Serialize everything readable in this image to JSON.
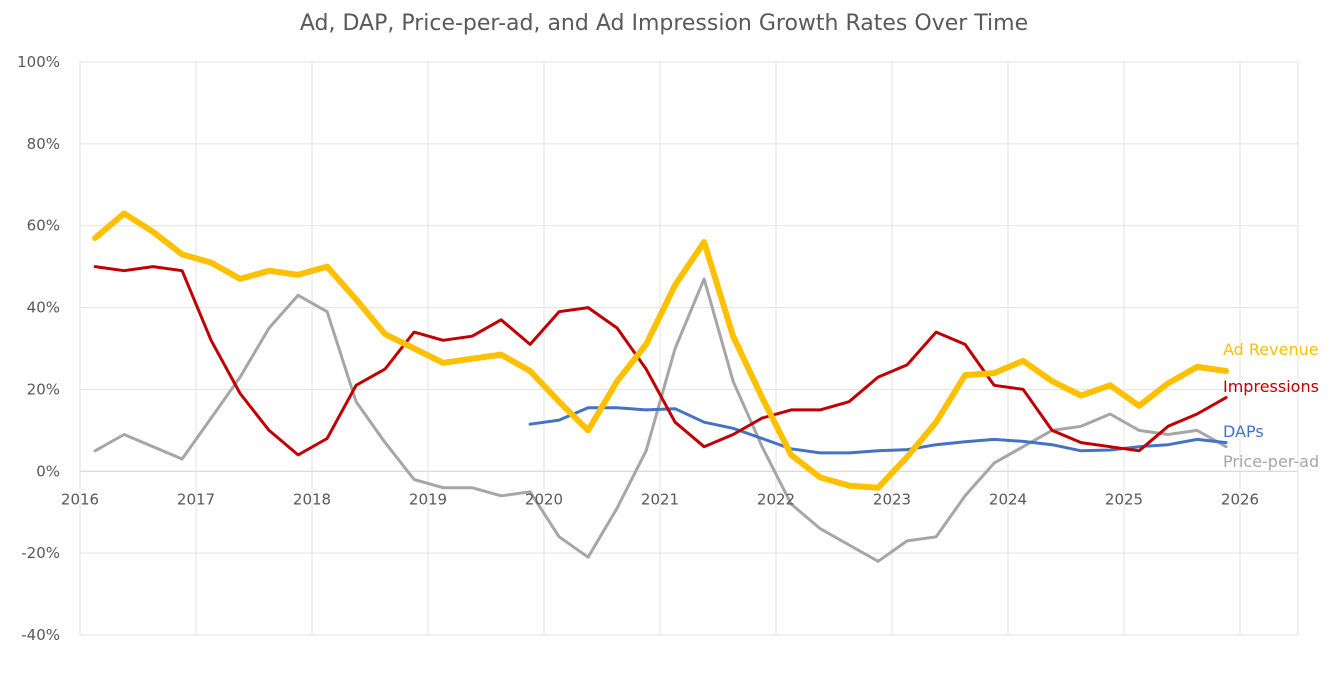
{
  "chart_data": {
    "type": "line",
    "title": "Ad, DAP, Price-per-ad, and Ad Impression Growth Rates Over Time",
    "xlabel": "",
    "ylabel": "",
    "xlim": [
      2016,
      2026.5
    ],
    "ylim": [
      -40,
      100
    ],
    "x_ticks": [
      2016,
      2017,
      2018,
      2019,
      2020,
      2021,
      2022,
      2023,
      2024,
      2025,
      2026
    ],
    "x_tick_labels": [
      "2016",
      "2017",
      "2018",
      "2019",
      "2020",
      "2021",
      "2022",
      "2023",
      "2024",
      "2025",
      "2026"
    ],
    "y_ticks": [
      -40,
      -20,
      0,
      20,
      40,
      60,
      80,
      100
    ],
    "y_tick_labels": [
      "-40%",
      "-20%",
      "0%",
      "20%",
      "40%",
      "60%",
      "80%",
      "100%"
    ],
    "grid": true,
    "legend": "end-of-line labels",
    "series": [
      {
        "name": "Ad Revenue",
        "color": "#FFC000",
        "points": [
          [
            2016.13,
            57
          ],
          [
            2016.38,
            63
          ],
          [
            2016.63,
            58.5
          ],
          [
            2016.88,
            53
          ],
          [
            2017.13,
            51
          ],
          [
            2017.38,
            47
          ],
          [
            2017.63,
            49
          ],
          [
            2017.88,
            48
          ],
          [
            2018.13,
            50
          ],
          [
            2018.38,
            42
          ],
          [
            2018.63,
            33.5
          ],
          [
            2018.88,
            30
          ],
          [
            2019.13,
            26.5
          ],
          [
            2019.38,
            27.5
          ],
          [
            2019.63,
            28.5
          ],
          [
            2019.88,
            24.5
          ],
          [
            2020.13,
            17
          ],
          [
            2020.38,
            10
          ],
          [
            2020.63,
            22
          ],
          [
            2020.88,
            31
          ],
          [
            2021.13,
            45.5
          ],
          [
            2021.38,
            56
          ],
          [
            2021.63,
            33
          ],
          [
            2021.88,
            18
          ],
          [
            2022.13,
            4
          ],
          [
            2022.38,
            -1.5
          ],
          [
            2022.63,
            -3.5
          ],
          [
            2022.88,
            -4
          ],
          [
            2023.13,
            3.5
          ],
          [
            2023.38,
            12
          ],
          [
            2023.63,
            23.5
          ],
          [
            2023.88,
            24
          ],
          [
            2024.13,
            27
          ],
          [
            2024.38,
            22
          ],
          [
            2024.63,
            18.5
          ],
          [
            2024.88,
            21
          ],
          [
            2025.13,
            16
          ],
          [
            2025.38,
            21.5
          ],
          [
            2025.63,
            25.5
          ],
          [
            2025.88,
            24.5
          ]
        ]
      },
      {
        "name": "Impressions",
        "color": "#C00000",
        "points": [
          [
            2016.13,
            50
          ],
          [
            2016.38,
            49
          ],
          [
            2016.63,
            50
          ],
          [
            2016.88,
            49
          ],
          [
            2017.13,
            32
          ],
          [
            2017.38,
            19
          ],
          [
            2017.63,
            10
          ],
          [
            2017.88,
            4
          ],
          [
            2018.13,
            8
          ],
          [
            2018.38,
            21
          ],
          [
            2018.63,
            25
          ],
          [
            2018.88,
            34
          ],
          [
            2019.13,
            32
          ],
          [
            2019.38,
            33
          ],
          [
            2019.63,
            37
          ],
          [
            2019.88,
            31
          ],
          [
            2020.13,
            39
          ],
          [
            2020.38,
            40
          ],
          [
            2020.63,
            35
          ],
          [
            2020.88,
            25
          ],
          [
            2021.13,
            12
          ],
          [
            2021.38,
            6
          ],
          [
            2021.63,
            9
          ],
          [
            2021.88,
            13
          ],
          [
            2022.13,
            15
          ],
          [
            2022.38,
            15
          ],
          [
            2022.63,
            17
          ],
          [
            2022.88,
            23
          ],
          [
            2023.13,
            26
          ],
          [
            2023.38,
            34
          ],
          [
            2023.63,
            31
          ],
          [
            2023.88,
            21
          ],
          [
            2024.13,
            20
          ],
          [
            2024.38,
            10
          ],
          [
            2024.63,
            7
          ],
          [
            2024.88,
            6
          ],
          [
            2025.13,
            5
          ],
          [
            2025.38,
            11
          ],
          [
            2025.63,
            14
          ],
          [
            2025.88,
            18
          ]
        ]
      },
      {
        "name": "DAPs",
        "color": "#4472C4",
        "points": [
          [
            2019.88,
            11.5
          ],
          [
            2020.13,
            12.5
          ],
          [
            2020.38,
            15.5
          ],
          [
            2020.63,
            15.5
          ],
          [
            2020.88,
            15
          ],
          [
            2021.13,
            15.3
          ],
          [
            2021.38,
            12
          ],
          [
            2021.63,
            10.5
          ],
          [
            2021.88,
            8
          ],
          [
            2022.13,
            5.5
          ],
          [
            2022.38,
            4.5
          ],
          [
            2022.63,
            4.5
          ],
          [
            2022.88,
            5
          ],
          [
            2023.13,
            5.3
          ],
          [
            2023.38,
            6.5
          ],
          [
            2023.63,
            7.2
          ],
          [
            2023.88,
            7.8
          ],
          [
            2024.13,
            7.3
          ],
          [
            2024.38,
            6.5
          ],
          [
            2024.63,
            5
          ],
          [
            2024.88,
            5.2
          ],
          [
            2025.13,
            6
          ],
          [
            2025.38,
            6.5
          ],
          [
            2025.63,
            7.8
          ],
          [
            2025.88,
            7
          ]
        ]
      },
      {
        "name": "Price-per-ad",
        "color": "#A6A6A6",
        "points": [
          [
            2016.13,
            5
          ],
          [
            2016.38,
            9
          ],
          [
            2016.63,
            6
          ],
          [
            2016.88,
            3
          ],
          [
            2017.13,
            13
          ],
          [
            2017.38,
            23
          ],
          [
            2017.63,
            35
          ],
          [
            2017.88,
            43
          ],
          [
            2018.13,
            39
          ],
          [
            2018.38,
            17
          ],
          [
            2018.63,
            7
          ],
          [
            2018.88,
            -2
          ],
          [
            2019.13,
            -4
          ],
          [
            2019.38,
            -4
          ],
          [
            2019.63,
            -6
          ],
          [
            2019.88,
            -5
          ],
          [
            2020.13,
            -16
          ],
          [
            2020.38,
            -21
          ],
          [
            2020.63,
            -9
          ],
          [
            2020.88,
            5
          ],
          [
            2021.13,
            30
          ],
          [
            2021.38,
            47
          ],
          [
            2021.63,
            22
          ],
          [
            2021.88,
            6
          ],
          [
            2022.13,
            -8
          ],
          [
            2022.38,
            -14
          ],
          [
            2022.63,
            -18
          ],
          [
            2022.88,
            -22
          ],
          [
            2023.13,
            -17
          ],
          [
            2023.38,
            -16
          ],
          [
            2023.63,
            -6
          ],
          [
            2023.88,
            2
          ],
          [
            2024.13,
            6
          ],
          [
            2024.38,
            10
          ],
          [
            2024.63,
            11
          ],
          [
            2024.88,
            14
          ],
          [
            2025.13,
            10
          ],
          [
            2025.38,
            9
          ],
          [
            2025.63,
            10
          ],
          [
            2025.88,
            6
          ]
        ]
      }
    ]
  }
}
